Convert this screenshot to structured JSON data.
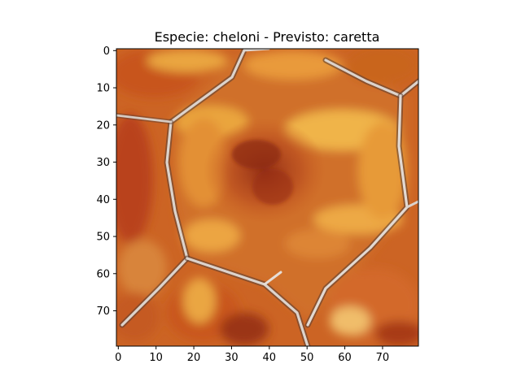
{
  "figure": {
    "title": "Especie: cheloni - Previsto: caretta",
    "image_subject": "close-up of turtle shell scutes (orange, brown, cream seams)",
    "colors": {
      "shell_dark": "#a2361a",
      "shell_mid": "#cf6a25",
      "shell_bright": "#e9a13b",
      "seam": "#d9d0c8",
      "seam_shadow": "#6b4a3a"
    }
  },
  "axes": {
    "x_range": [
      0,
      80
    ],
    "y_range": [
      0,
      80
    ],
    "x_ticks": [
      "0",
      "10",
      "20",
      "30",
      "40",
      "50",
      "60",
      "70"
    ],
    "y_ticks": [
      "0",
      "10",
      "20",
      "30",
      "40",
      "50",
      "60",
      "70"
    ]
  }
}
